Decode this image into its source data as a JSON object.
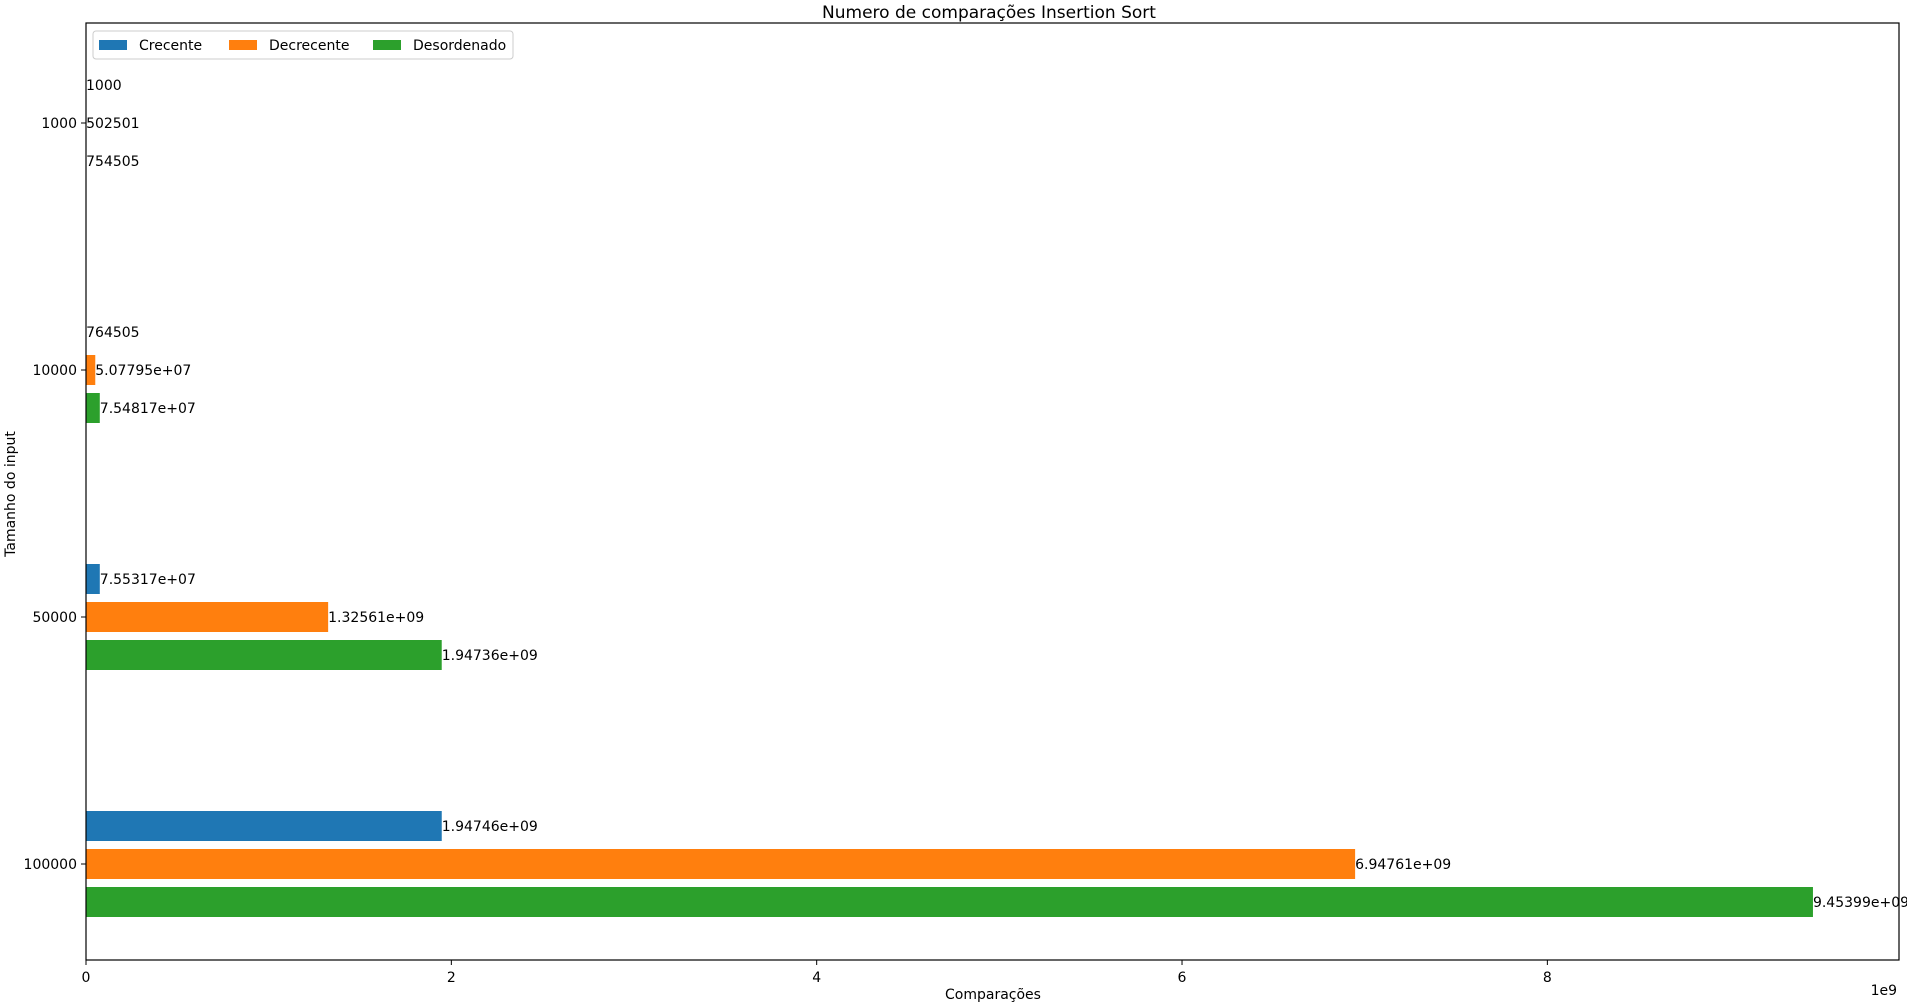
{
  "chart_data": {
    "type": "bar",
    "orientation": "horizontal",
    "title": "Numero de comparações Insertion Sort",
    "xlabel": "Comparações",
    "ylabel": "Tamanho do input",
    "x_offset_label": "1e9",
    "x_multiplier": 1000000000,
    "xlim": [
      0,
      9.925
    ],
    "x_ticks": [
      0,
      2,
      4,
      6,
      8
    ],
    "categories": [
      "1000",
      "10000",
      "50000",
      "100000"
    ],
    "series": [
      {
        "name": "Crecente",
        "color": "#1f77b4",
        "values": [
          1000,
          764505,
          75531700,
          1947460000
        ],
        "labels": [
          "1000",
          "764505",
          "7.55317e+07",
          "1.94746e+09"
        ]
      },
      {
        "name": "Decrecente",
        "color": "#ff7f0e",
        "values": [
          502501,
          50779500,
          1325610000,
          6947610000
        ],
        "labels": [
          "502501",
          "5.07795e+07",
          "1.32561e+09",
          "6.94761e+09"
        ]
      },
      {
        "name": "Desordenado",
        "color": "#2ca02c",
        "values": [
          754505,
          75481700,
          1947360000,
          9453990000
        ],
        "labels": [
          "754505",
          "7.54817e+07",
          "1.94736e+09",
          "9.45399e+09"
        ]
      }
    ],
    "legend_position": "upper-left",
    "legend_columns": 3,
    "grid": false
  }
}
